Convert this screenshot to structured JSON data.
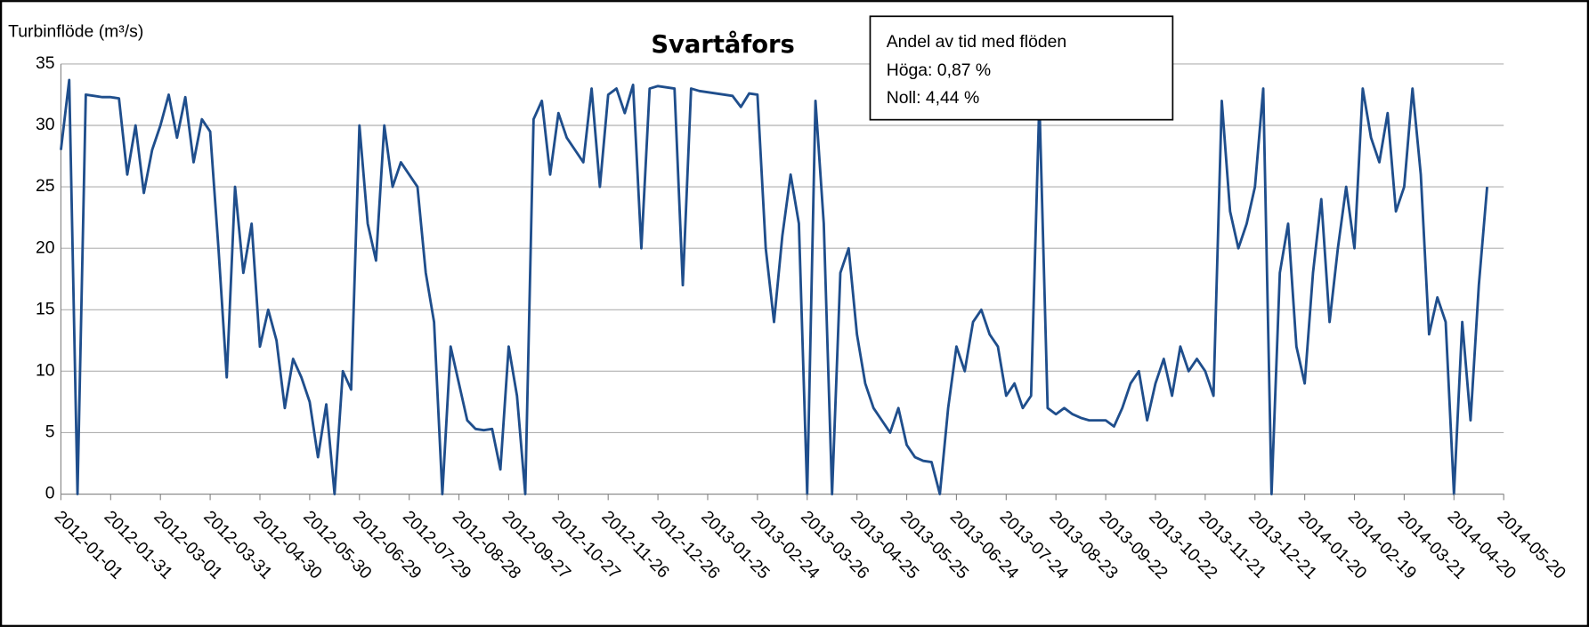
{
  "chart_data": {
    "type": "line",
    "title": "Svartåfors",
    "ylabel": "Turbinflöde  (m³/s)",
    "annotation": [
      "Andel av tid med flöden",
      "Höga: 0,87 %",
      "Noll: 4,44 %"
    ],
    "ylim": [
      0,
      35
    ],
    "yticks": [
      0,
      5,
      10,
      15,
      20,
      25,
      30,
      35
    ],
    "xlim": [
      "2012-01-01",
      "2014-05-20"
    ],
    "xticks": [
      "2012-01-01",
      "2012-01-31",
      "2012-03-01",
      "2012-03-31",
      "2012-04-30",
      "2012-05-30",
      "2012-06-29",
      "2012-07-29",
      "2012-08-28",
      "2012-09-27",
      "2012-10-27",
      "2012-11-26",
      "2012-12-26",
      "2013-01-25",
      "2013-02-24",
      "2013-03-26",
      "2013-04-25",
      "2013-05-25",
      "2013-06-24",
      "2013-07-24",
      "2013-08-23",
      "2013-09-22",
      "2013-10-22",
      "2013-11-21",
      "2013-12-21",
      "2014-01-20",
      "2014-02-19",
      "2014-03-21",
      "2014-04-20",
      "2014-05-20"
    ],
    "grid": true,
    "x": [
      "2012-01-01",
      "2012-01-06",
      "2012-01-11",
      "2012-01-16",
      "2012-01-21",
      "2012-01-26",
      "2012-01-31",
      "2012-02-05",
      "2012-02-10",
      "2012-02-15",
      "2012-02-20",
      "2012-02-25",
      "2012-03-01",
      "2012-03-06",
      "2012-03-11",
      "2012-03-16",
      "2012-03-21",
      "2012-03-26",
      "2012-03-31",
      "2012-04-05",
      "2012-04-10",
      "2012-04-15",
      "2012-04-20",
      "2012-04-25",
      "2012-04-30",
      "2012-05-05",
      "2012-05-10",
      "2012-05-15",
      "2012-05-20",
      "2012-05-25",
      "2012-05-30",
      "2012-06-04",
      "2012-06-09",
      "2012-06-14",
      "2012-06-19",
      "2012-06-24",
      "2012-06-29",
      "2012-07-04",
      "2012-07-09",
      "2012-07-14",
      "2012-07-19",
      "2012-07-24",
      "2012-07-29",
      "2012-08-03",
      "2012-08-08",
      "2012-08-13",
      "2012-08-18",
      "2012-08-23",
      "2012-08-28",
      "2012-09-02",
      "2012-09-07",
      "2012-09-12",
      "2012-09-17",
      "2012-09-22",
      "2012-09-27",
      "2012-10-02",
      "2012-10-07",
      "2012-10-12",
      "2012-10-17",
      "2012-10-22",
      "2012-10-27",
      "2012-11-01",
      "2012-11-06",
      "2012-11-11",
      "2012-11-16",
      "2012-11-21",
      "2012-11-26",
      "2012-12-01",
      "2012-12-06",
      "2012-12-11",
      "2012-12-16",
      "2012-12-21",
      "2012-12-26",
      "2012-12-31",
      "2013-01-05",
      "2013-01-10",
      "2013-01-15",
      "2013-01-20",
      "2013-01-25",
      "2013-01-30",
      "2013-02-04",
      "2013-02-09",
      "2013-02-14",
      "2013-02-19",
      "2013-02-24",
      "2013-03-01",
      "2013-03-06",
      "2013-03-11",
      "2013-03-16",
      "2013-03-21",
      "2013-03-26",
      "2013-03-31",
      "2013-04-05",
      "2013-04-10",
      "2013-04-15",
      "2013-04-20",
      "2013-04-25",
      "2013-04-30",
      "2013-05-05",
      "2013-05-10",
      "2013-05-15",
      "2013-05-20",
      "2013-05-25",
      "2013-05-30",
      "2013-06-04",
      "2013-06-09",
      "2013-06-14",
      "2013-06-19",
      "2013-06-24",
      "2013-06-29",
      "2013-07-04",
      "2013-07-09",
      "2013-07-14",
      "2013-07-19",
      "2013-07-24",
      "2013-07-29",
      "2013-08-03",
      "2013-08-08",
      "2013-08-13",
      "2013-08-18",
      "2013-08-23",
      "2013-08-28",
      "2013-09-02",
      "2013-09-07",
      "2013-09-12",
      "2013-09-17",
      "2013-09-22",
      "2013-09-27",
      "2013-10-02",
      "2013-10-07",
      "2013-10-12",
      "2013-10-17",
      "2013-10-22",
      "2013-10-27",
      "2013-11-01",
      "2013-11-06",
      "2013-11-11",
      "2013-11-16",
      "2013-11-21",
      "2013-11-26",
      "2013-12-01",
      "2013-12-06",
      "2013-12-11",
      "2013-12-16",
      "2013-12-21",
      "2013-12-26",
      "2013-12-31",
      "2014-01-05",
      "2014-01-10",
      "2014-01-15",
      "2014-01-20",
      "2014-01-25",
      "2014-01-30",
      "2014-02-04",
      "2014-02-09",
      "2014-02-14",
      "2014-02-19",
      "2014-02-24",
      "2014-03-01",
      "2014-03-06",
      "2014-03-11",
      "2014-03-16",
      "2014-03-21",
      "2014-03-26",
      "2014-03-31",
      "2014-04-05",
      "2014-04-10",
      "2014-04-15",
      "2014-04-20",
      "2014-04-25",
      "2014-04-30",
      "2014-05-05",
      "2014-05-10"
    ],
    "series": [
      {
        "name": "Turbinflöde",
        "color": "#1f4e8c",
        "values": [
          28,
          33.7,
          0,
          32.5,
          32.4,
          32.3,
          32.3,
          32.2,
          26,
          30,
          24.5,
          28,
          30,
          32.5,
          29,
          32.3,
          27,
          30.5,
          29.5,
          20,
          9.5,
          25,
          18,
          22,
          12,
          15,
          12.5,
          7,
          11,
          9.5,
          7.5,
          3,
          7.3,
          0,
          10,
          8.5,
          30,
          22,
          19,
          30,
          25,
          27,
          26,
          25,
          18,
          14,
          0,
          12,
          9,
          6,
          5.3,
          5.2,
          5.3,
          2,
          12,
          8,
          0,
          30.5,
          32,
          26,
          31,
          29,
          28,
          27,
          33,
          25,
          32.5,
          33,
          31,
          33.3,
          20,
          33,
          33.2,
          33.1,
          33,
          17,
          33,
          32.8,
          32.7,
          32.6,
          32.5,
          32.4,
          31.5,
          32.6,
          32.5,
          20,
          14,
          21,
          26,
          22,
          0,
          32,
          22,
          0,
          18,
          20,
          13,
          9,
          7,
          6,
          5,
          7,
          4,
          3,
          2.7,
          2.6,
          0,
          7,
          12,
          10,
          14,
          15,
          13,
          12,
          8,
          9,
          7,
          8,
          32,
          7,
          6.5,
          7,
          6.5,
          6.2,
          6,
          6,
          6,
          5.5,
          7,
          9,
          10,
          6,
          9,
          11,
          8,
          12,
          10,
          11,
          10,
          8,
          32,
          23,
          20,
          22,
          25,
          33,
          0,
          18,
          22,
          12,
          9,
          18,
          24,
          14,
          20,
          25,
          20,
          33,
          29,
          27,
          31,
          23,
          25,
          33,
          26,
          13,
          16,
          14,
          0,
          14,
          6,
          17,
          25
        ]
      }
    ]
  }
}
